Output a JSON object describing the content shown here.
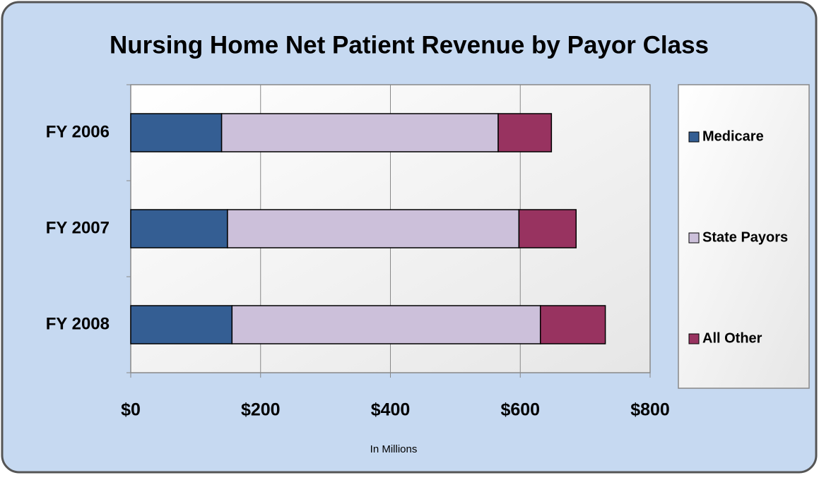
{
  "chart_data": {
    "type": "stacked-barh",
    "title": "Nursing Home Net Patient Revenue by Payor Class",
    "x_label": "In Millions",
    "categories": [
      "FY 2006",
      "FY 2007",
      "FY 2008"
    ],
    "series": [
      {
        "name": "Medicare",
        "color": "#345e93",
        "values": [
          140,
          149,
          156
        ]
      },
      {
        "name": "State Payors",
        "color": "#ccc0da",
        "values": [
          426,
          449,
          475
        ]
      },
      {
        "name": "All Other",
        "color": "#983360",
        "values": [
          82,
          88,
          100
        ]
      }
    ],
    "xlim": [
      0,
      800
    ],
    "xticks": [
      {
        "value": 0,
        "label": "$0"
      },
      {
        "value": 200,
        "label": "$200"
      },
      {
        "value": 400,
        "label": "$400"
      },
      {
        "value": 600,
        "label": "$600"
      },
      {
        "value": 800,
        "label": "$800"
      }
    ],
    "grid": true,
    "legend": "right"
  }
}
